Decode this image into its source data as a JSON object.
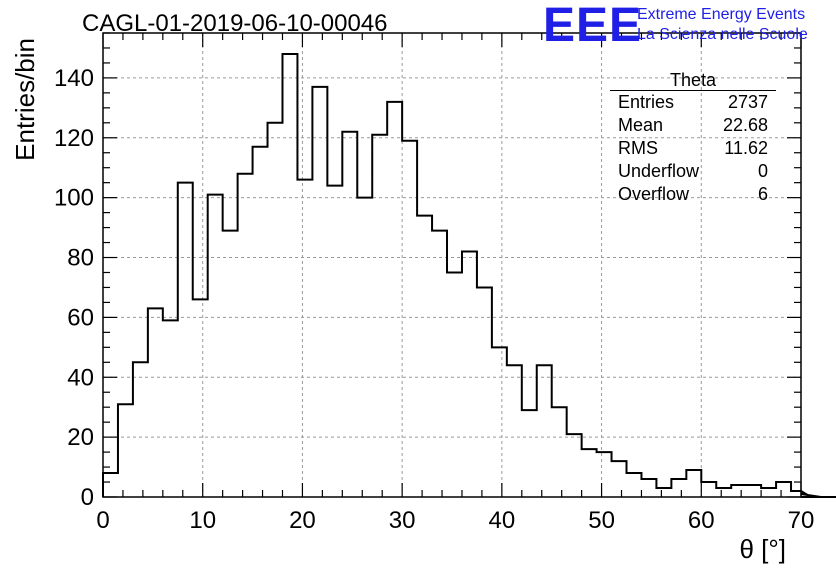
{
  "title": "CAGL-01-2019-06-10-00046",
  "logo": {
    "mark": "EEE",
    "line1": "Extreme Energy Events",
    "line2": "La Scienza nelle Scuole",
    "color": "#1f1fe6"
  },
  "stats_box": {
    "title": "Theta",
    "rows": [
      {
        "label": "Entries",
        "value": "2737"
      },
      {
        "label": "Mean",
        "value": "22.68"
      },
      {
        "label": "RMS",
        "value": "11.62"
      },
      {
        "label": "Underflow",
        "value": "0"
      },
      {
        "label": "Overflow",
        "value": "6"
      }
    ]
  },
  "chart_data": {
    "type": "histogram",
    "title": "CAGL-01-2019-06-10-00046",
    "xlabel": "θ [°]",
    "ylabel": "Entries/bin",
    "xlim": [
      0,
      70
    ],
    "ylim": [
      0,
      155
    ],
    "xticks": [
      0,
      10,
      20,
      30,
      40,
      50,
      60,
      70
    ],
    "yticks": [
      0,
      20,
      40,
      60,
      80,
      100,
      120,
      140
    ],
    "grid": true,
    "bin_width": 1.5,
    "bin_edges_start": 0,
    "values": [
      8,
      31,
      45,
      63,
      59,
      105,
      66,
      101,
      89,
      108,
      117,
      125,
      148,
      106,
      137,
      104,
      122,
      100,
      121,
      132,
      119,
      94,
      89,
      75,
      82,
      70,
      50,
      44,
      29,
      44,
      30,
      21,
      16,
      15,
      12,
      8,
      6,
      3,
      6,
      9,
      5,
      3,
      4,
      4,
      3,
      5,
      2,
      1,
      0,
      0,
      0
    ],
    "line_color": "#000000"
  }
}
